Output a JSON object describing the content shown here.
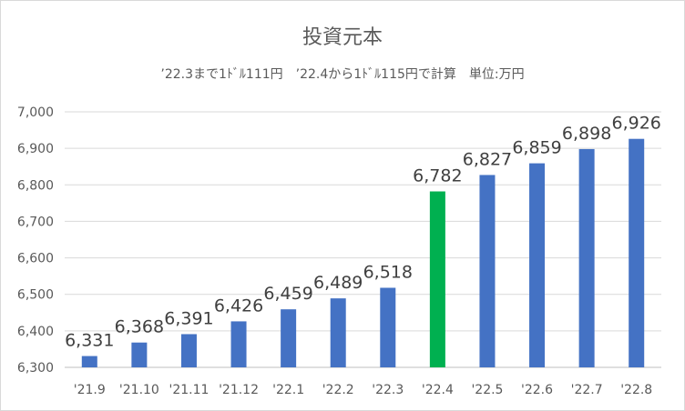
{
  "chart_data": {
    "type": "bar",
    "title": "投資元本",
    "subtitle": "’22.3まで1ﾄﾞﾙ111円　’22.4から1ﾄﾞﾙ115円で計算　単位:万円",
    "categories": [
      "'21.9",
      "'21.10",
      "'21.11",
      "'21.12",
      "'22.1",
      "'22.2",
      "'22.3",
      "'22.4",
      "'22.5",
      "'22.6",
      "'22.7",
      "'22.8"
    ],
    "values": [
      6331,
      6368,
      6391,
      6426,
      6459,
      6489,
      6518,
      6782,
      6827,
      6859,
      6898,
      6926
    ],
    "data_labels": [
      "6,331",
      "6,368",
      "6,391",
      "6,426",
      "6,459",
      "6,489",
      "6,518",
      "6,782",
      "6,827",
      "6,859",
      "6,898",
      "6,926"
    ],
    "ylim": [
      6300,
      7000
    ],
    "y_ticks": [
      6300,
      6400,
      6500,
      6600,
      6700,
      6800,
      6900,
      7000
    ],
    "y_tick_labels": [
      "6,300",
      "6,400",
      "6,500",
      "6,600",
      "6,700",
      "6,800",
      "6,900",
      "7,000"
    ],
    "xlabel": "",
    "ylabel": "",
    "grid": true,
    "legend": "none",
    "colors": {
      "bar": "#4472c4",
      "highlight_bar": "#00b050",
      "highlight_index": 7,
      "grid": "#d9d9d9",
      "text": "#595959"
    }
  }
}
